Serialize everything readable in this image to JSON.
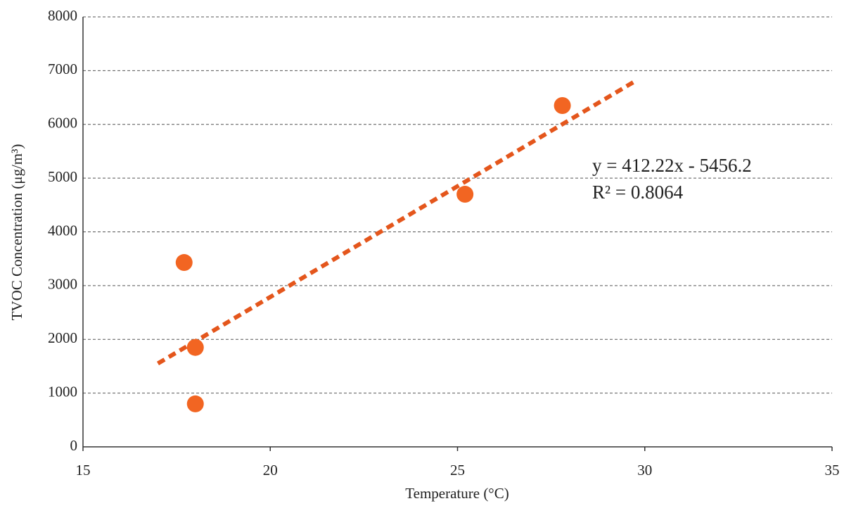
{
  "chart_data": {
    "type": "scatter",
    "xlabel": "Temperature (°C)",
    "ylabel": "TVOC Concentration (μg/m³)",
    "series": [
      {
        "name": "TVOC",
        "color": "#f26522",
        "x": [
          17.7,
          18.0,
          18.0,
          25.2,
          27.8
        ],
        "values": [
          3430,
          1850,
          800,
          4700,
          6350
        ]
      }
    ],
    "trendline": {
      "x": [
        17,
        29.8
      ],
      "slope": 412.22,
      "intercept": -5456.2,
      "color": "#e4561c",
      "equation": "y = 412.22x - 5456.2",
      "r2_label": "R² = 0.8064"
    },
    "xlim": [
      15,
      35
    ],
    "xticks": [
      15,
      20,
      25,
      30,
      35
    ],
    "ylim": [
      0,
      8000
    ],
    "yticks": [
      0,
      1000,
      2000,
      3000,
      4000,
      5000,
      6000,
      7000,
      8000
    ],
    "grid": true
  }
}
